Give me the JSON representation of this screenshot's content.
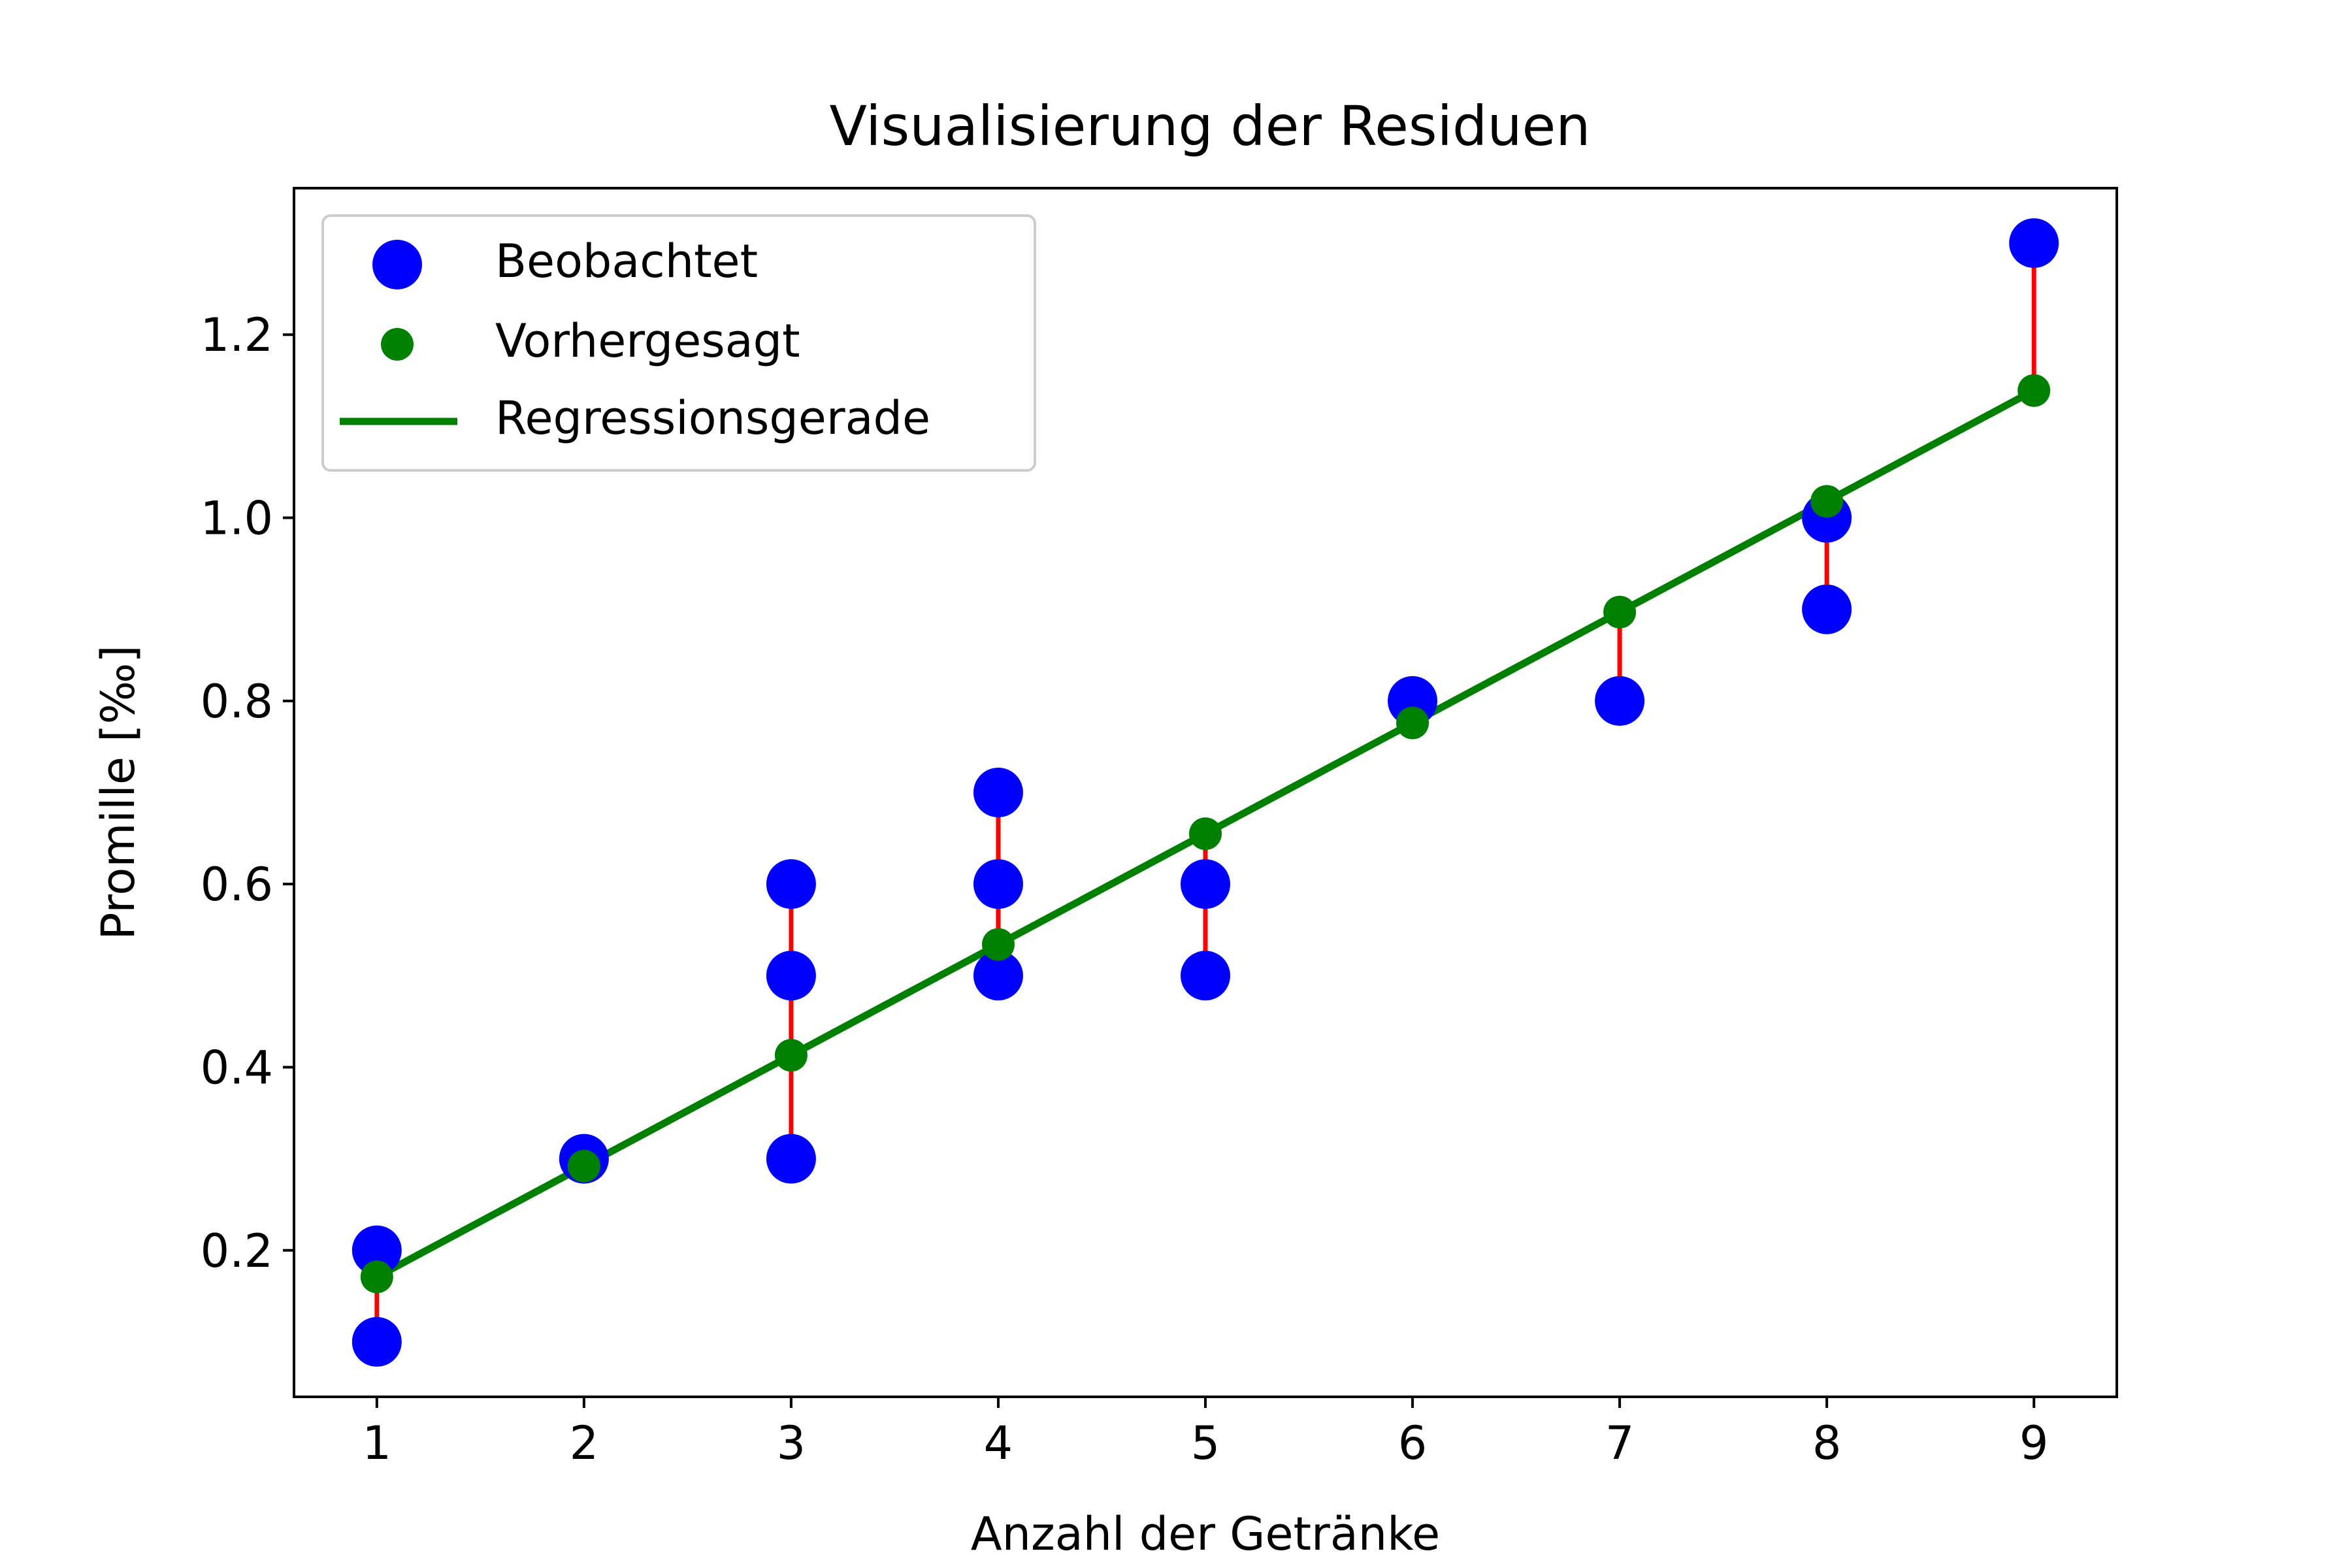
{
  "chart_data": {
    "type": "scatter",
    "title": "Visualisierung der Residuen",
    "xlabel": "Anzahl der Getränke",
    "ylabel": "Promille [‰]",
    "xlim": [
      0.6,
      9.4
    ],
    "ylim": [
      0.04,
      1.36
    ],
    "xticks": [
      1,
      2,
      3,
      4,
      5,
      6,
      7,
      8,
      9
    ],
    "yticks": [
      0.2,
      0.4,
      0.6,
      0.8,
      1.0,
      1.2
    ],
    "ytick_labels": [
      "0.2",
      "0.4",
      "0.6",
      "0.8",
      "1.0",
      "1.2"
    ],
    "grid": false,
    "legend_position": "top-left",
    "series": [
      {
        "name": "Beobachtet",
        "kind": "scatter",
        "color": "#0000ff",
        "x": [
          1,
          1,
          2,
          3,
          3,
          3,
          4,
          4,
          4,
          5,
          5,
          6,
          7,
          8,
          8,
          9
        ],
        "y": [
          0.2,
          0.1,
          0.3,
          0.6,
          0.5,
          0.3,
          0.7,
          0.6,
          0.5,
          0.6,
          0.5,
          0.8,
          0.8,
          1.0,
          0.9,
          1.3
        ]
      },
      {
        "name": "Vorhergesagt",
        "kind": "scatter",
        "color": "#008000",
        "x": [
          1,
          2,
          3,
          4,
          5,
          6,
          7,
          8,
          9
        ],
        "y": [
          0.171,
          0.292,
          0.413,
          0.534,
          0.655,
          0.776,
          0.897,
          1.018,
          1.139
        ]
      },
      {
        "name": "Regressionsgerade",
        "kind": "line",
        "color": "#008000",
        "x": [
          1,
          9
        ],
        "y": [
          0.171,
          1.139
        ]
      }
    ],
    "residual_color": "#ff0000"
  }
}
